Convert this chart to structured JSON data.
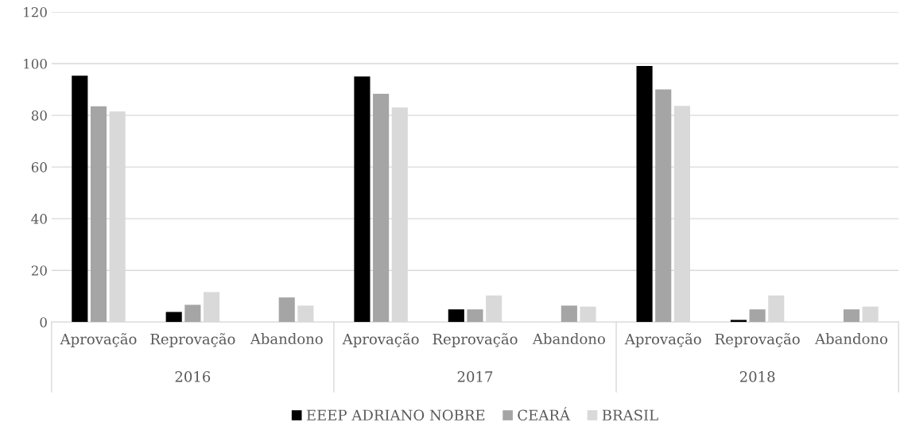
{
  "chart_data": {
    "type": "bar",
    "categories": [
      "Aprovação",
      "Reprovação",
      "Abandono",
      "Aprovação",
      "Reprovação",
      "Abandono",
      "Aprovação",
      "Reprovação",
      "Abandono"
    ],
    "series": [
      {
        "name": "EEEP ADRIANO NOBRE",
        "color": "#000000",
        "values": [
          95.3,
          3.9,
          0,
          95.0,
          4.9,
          0,
          99.1,
          0.8,
          0
        ]
      },
      {
        "name": "CEARÁ",
        "color": "#a5a5a5",
        "values": [
          83.5,
          6.7,
          9.5,
          88.3,
          4.9,
          6.4,
          90.0,
          4.9,
          4.9
        ]
      },
      {
        "name": "BRASIL",
        "color": "#d9d9d9",
        "values": [
          81.5,
          11.6,
          6.4,
          83.0,
          10.3,
          6.0,
          83.6,
          10.3,
          6.0
        ]
      }
    ],
    "annotations": [
      "2016",
      "2017",
      "2018"
    ],
    "ylim": [
      0,
      120
    ],
    "yticks": [
      0,
      20,
      40,
      60,
      80,
      100,
      120
    ],
    "grid": "y",
    "legend": "bottom"
  }
}
